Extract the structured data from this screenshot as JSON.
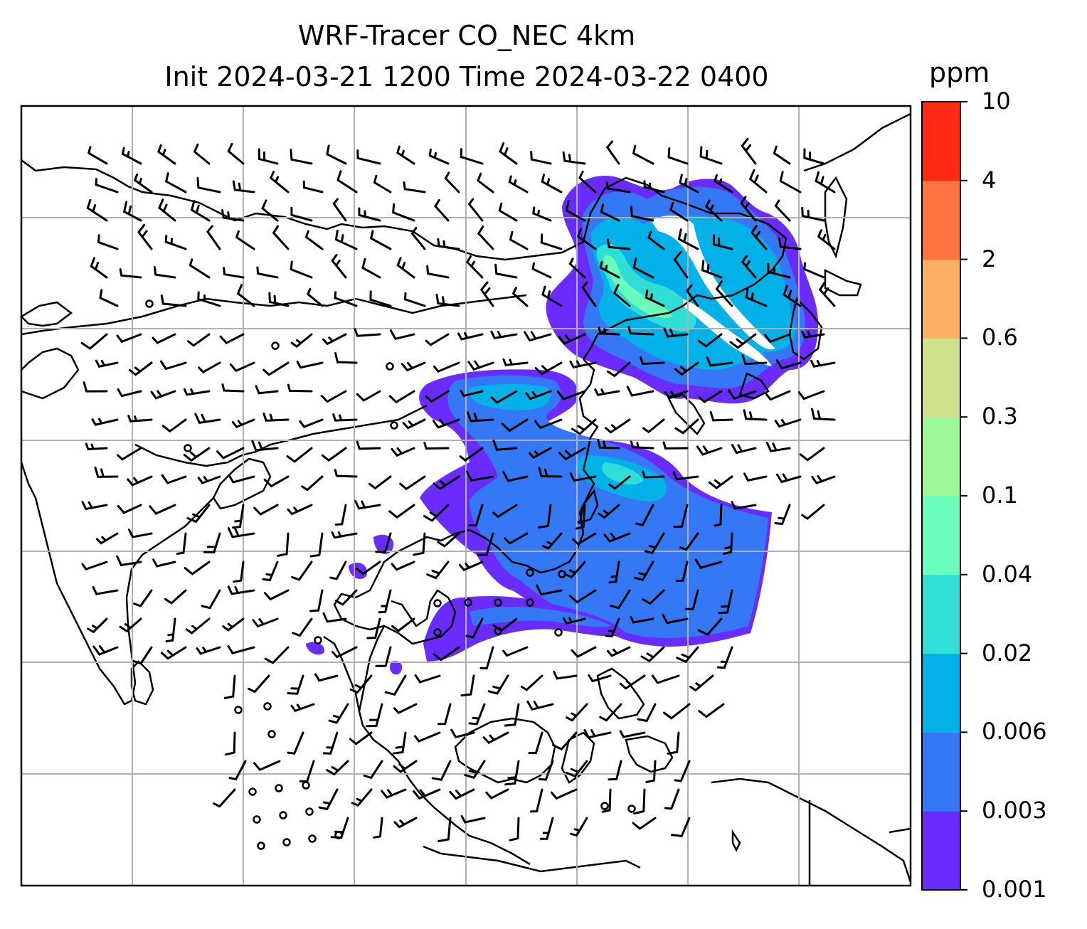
{
  "title": {
    "line1": "WRF-Tracer CO_NEC 4km",
    "line2": "Init 2024-03-21 1200 Time 2024-03-22 0400"
  },
  "colorbar": {
    "unit": "ppm",
    "levels": [
      "0.001",
      "0.003",
      "0.006",
      "0.02",
      "0.04",
      "0.1",
      "0.3",
      "0.6",
      "2",
      "4",
      "10"
    ],
    "colors": [
      "#6a2bff",
      "#3478f6",
      "#02b1e8",
      "#2fded4",
      "#6bfbbb",
      "#9cf99a",
      "#cfe28b",
      "#fdb063",
      "#ff7441",
      "#ff2a16"
    ]
  },
  "map": {
    "grid": "on",
    "field": "CO tracer concentration with wind barbs"
  }
}
